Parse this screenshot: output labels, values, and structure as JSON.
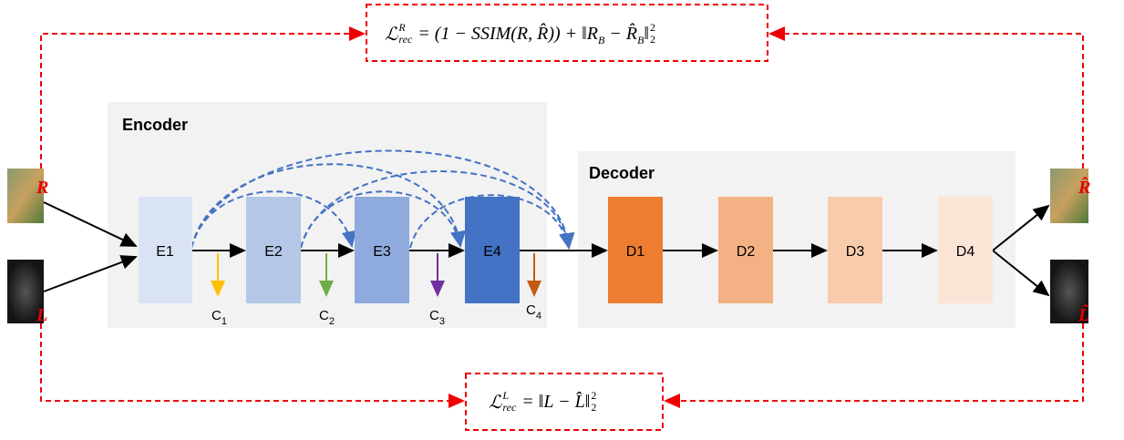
{
  "loss_r": {
    "parts": [
      "ℒ",
      "R",
      "rec",
      " = (1 − SSIM(R, R̂)) + ‖R",
      "B",
      " − R̂",
      "B",
      "‖",
      "2",
      "2"
    ]
  },
  "loss_l": {
    "parts": [
      "ℒ",
      "L",
      "rec",
      " = ‖L − L̂‖",
      "2",
      "2"
    ]
  },
  "encoder": {
    "title": "Encoder",
    "blocks": [
      "E1",
      "E2",
      "E3",
      "E4"
    ]
  },
  "decoder": {
    "title": "Decoder",
    "blocks": [
      "D1",
      "D2",
      "D3",
      "D4"
    ]
  },
  "features": [
    {
      "base": "C",
      "sub": "1"
    },
    {
      "base": "C",
      "sub": "2"
    },
    {
      "base": "C",
      "sub": "3"
    },
    {
      "base": "C",
      "sub": "4"
    }
  ],
  "inputs": {
    "reflectance": "R",
    "illumination": "L"
  },
  "outputs": {
    "reflectance": "R̂",
    "illumination": "L̂"
  }
}
